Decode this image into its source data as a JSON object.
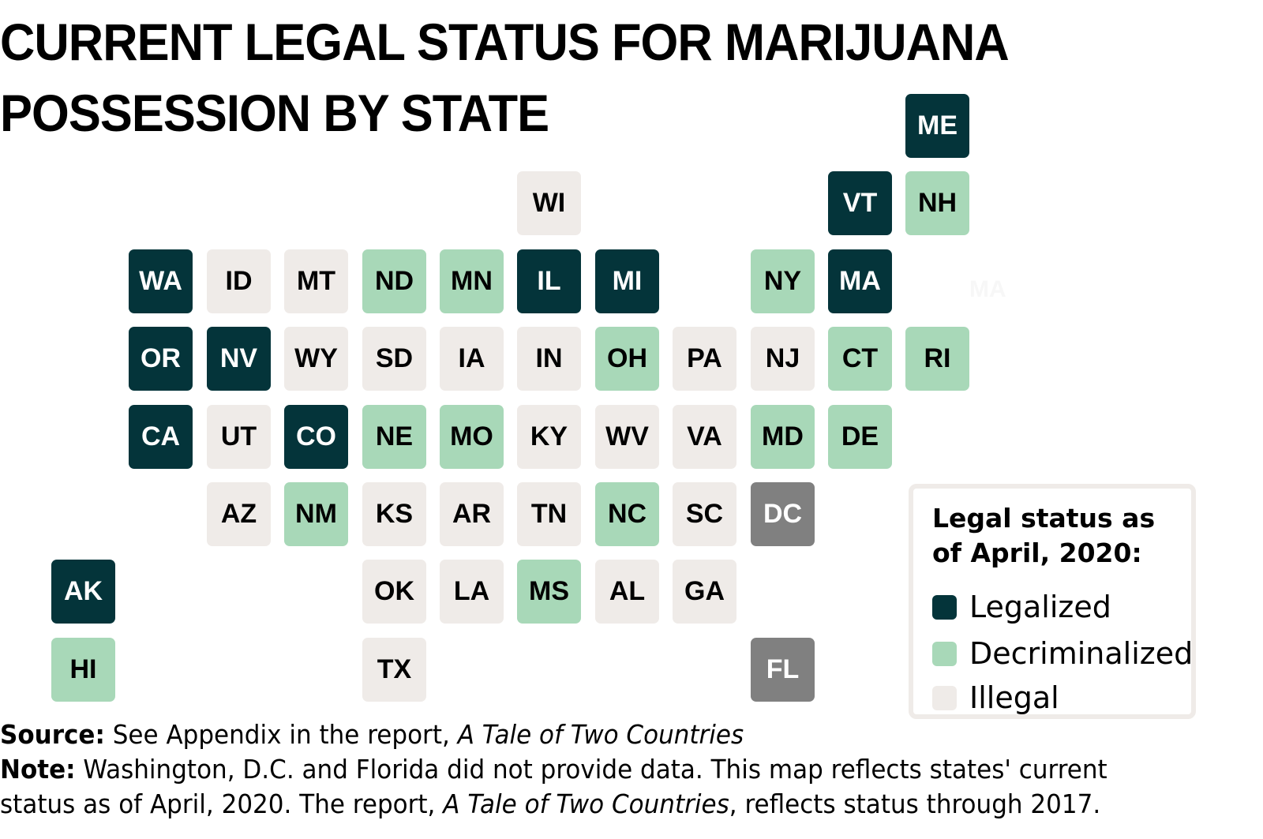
{
  "title": {
    "line1": "CURRENT LEGAL STATUS FOR MARIJUANA",
    "line2": "POSSESSION BY STATE"
  },
  "colors": {
    "legalized": "#04343a",
    "decriminalized": "#a8d8b8",
    "illegal": "#efebe8",
    "no_data": "#808080"
  },
  "ghost_label": "MA",
  "legend": {
    "title": "Legal status as of April, 2020:",
    "items": [
      {
        "label": "Legalized",
        "color": "#04343a"
      },
      {
        "label": "Decriminalized",
        "color": "#a8d8b8"
      },
      {
        "label": "Illegal",
        "color": "#efebe8"
      }
    ]
  },
  "footer": {
    "source_label": "Source:",
    "source_text": " See Appendix in the report, ",
    "source_title": "A Tale of Two Countries",
    "note_label": "Note:",
    "note_text": " Washington, D.C. and Florida did not provide data. This map reflects states' current",
    "note_line2_text": "status as of  April, 2020. The report, ",
    "note_line2_title": "A Tale of Two Countries",
    "note_line2_end": ", reflects status through 2017."
  },
  "chart_data": {
    "type": "tile-map",
    "title": "CURRENT LEGAL STATUS FOR MARIJUANA POSSESSION BY STATE",
    "legend_title": "Legal status as of April, 2020:",
    "categories": [
      "Legalized",
      "Decriminalized",
      "Illegal",
      "No data"
    ],
    "states": [
      {
        "code": "ME",
        "status": "Legalized",
        "col": 11,
        "row": 0
      },
      {
        "code": "WI",
        "status": "Illegal",
        "col": 6,
        "row": 1
      },
      {
        "code": "VT",
        "status": "Legalized",
        "col": 10,
        "row": 1
      },
      {
        "code": "NH",
        "status": "Decriminalized",
        "col": 11,
        "row": 1
      },
      {
        "code": "WA",
        "status": "Legalized",
        "col": 1,
        "row": 2
      },
      {
        "code": "ID",
        "status": "Illegal",
        "col": 2,
        "row": 2
      },
      {
        "code": "MT",
        "status": "Illegal",
        "col": 3,
        "row": 2
      },
      {
        "code": "ND",
        "status": "Decriminalized",
        "col": 4,
        "row": 2
      },
      {
        "code": "MN",
        "status": "Decriminalized",
        "col": 5,
        "row": 2
      },
      {
        "code": "IL",
        "status": "Legalized",
        "col": 6,
        "row": 2
      },
      {
        "code": "MI",
        "status": "Legalized",
        "col": 7,
        "row": 2
      },
      {
        "code": "NY",
        "status": "Decriminalized",
        "col": 9,
        "row": 2
      },
      {
        "code": "MA",
        "status": "Legalized",
        "col": 10,
        "row": 2
      },
      {
        "code": "OR",
        "status": "Legalized",
        "col": 1,
        "row": 3
      },
      {
        "code": "NV",
        "status": "Legalized",
        "col": 2,
        "row": 3
      },
      {
        "code": "WY",
        "status": "Illegal",
        "col": 3,
        "row": 3
      },
      {
        "code": "SD",
        "status": "Illegal",
        "col": 4,
        "row": 3
      },
      {
        "code": "IA",
        "status": "Illegal",
        "col": 5,
        "row": 3
      },
      {
        "code": "IN",
        "status": "Illegal",
        "col": 6,
        "row": 3
      },
      {
        "code": "OH",
        "status": "Decriminalized",
        "col": 7,
        "row": 3
      },
      {
        "code": "PA",
        "status": "Illegal",
        "col": 8,
        "row": 3
      },
      {
        "code": "NJ",
        "status": "Illegal",
        "col": 9,
        "row": 3
      },
      {
        "code": "CT",
        "status": "Decriminalized",
        "col": 10,
        "row": 3
      },
      {
        "code": "RI",
        "status": "Decriminalized",
        "col": 11,
        "row": 3
      },
      {
        "code": "CA",
        "status": "Legalized",
        "col": 1,
        "row": 4
      },
      {
        "code": "UT",
        "status": "Illegal",
        "col": 2,
        "row": 4
      },
      {
        "code": "CO",
        "status": "Legalized",
        "col": 3,
        "row": 4
      },
      {
        "code": "NE",
        "status": "Decriminalized",
        "col": 4,
        "row": 4
      },
      {
        "code": "MO",
        "status": "Decriminalized",
        "col": 5,
        "row": 4
      },
      {
        "code": "KY",
        "status": "Illegal",
        "col": 6,
        "row": 4
      },
      {
        "code": "WV",
        "status": "Illegal",
        "col": 7,
        "row": 4
      },
      {
        "code": "VA",
        "status": "Illegal",
        "col": 8,
        "row": 4
      },
      {
        "code": "MD",
        "status": "Decriminalized",
        "col": 9,
        "row": 4
      },
      {
        "code": "DE",
        "status": "Decriminalized",
        "col": 10,
        "row": 4
      },
      {
        "code": "AZ",
        "status": "Illegal",
        "col": 2,
        "row": 5
      },
      {
        "code": "NM",
        "status": "Decriminalized",
        "col": 3,
        "row": 5
      },
      {
        "code": "KS",
        "status": "Illegal",
        "col": 4,
        "row": 5
      },
      {
        "code": "AR",
        "status": "Illegal",
        "col": 5,
        "row": 5
      },
      {
        "code": "TN",
        "status": "Illegal",
        "col": 6,
        "row": 5
      },
      {
        "code": "NC",
        "status": "Decriminalized",
        "col": 7,
        "row": 5
      },
      {
        "code": "SC",
        "status": "Illegal",
        "col": 8,
        "row": 5
      },
      {
        "code": "DC",
        "status": "No data",
        "col": 9,
        "row": 5
      },
      {
        "code": "AK",
        "status": "Legalized",
        "col": 0,
        "row": 6
      },
      {
        "code": "OK",
        "status": "Illegal",
        "col": 4,
        "row": 6
      },
      {
        "code": "LA",
        "status": "Illegal",
        "col": 5,
        "row": 6
      },
      {
        "code": "MS",
        "status": "Decriminalized",
        "col": 6,
        "row": 6
      },
      {
        "code": "AL",
        "status": "Illegal",
        "col": 7,
        "row": 6
      },
      {
        "code": "GA",
        "status": "Illegal",
        "col": 8,
        "row": 6
      },
      {
        "code": "HI",
        "status": "Decriminalized",
        "col": 0,
        "row": 7
      },
      {
        "code": "TX",
        "status": "Illegal",
        "col": 4,
        "row": 7
      },
      {
        "code": "FL",
        "status": "No data",
        "col": 9,
        "row": 7
      }
    ]
  }
}
